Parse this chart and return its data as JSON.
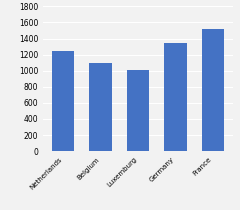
{
  "categories": [
    "Netherlands",
    "Belgium",
    "Luxemburg",
    "Germany",
    "France"
  ],
  "values": [
    1240,
    1090,
    1005,
    1340,
    1520
  ],
  "bar_color": "#4472C4",
  "ylim": [
    0,
    1800
  ],
  "yticks": [
    0,
    200,
    400,
    600,
    800,
    1000,
    1200,
    1400,
    1600,
    1800
  ],
  "background_color": "#f2f2f2",
  "plot_bg_color": "#f2f2f2",
  "grid_color": "#ffffff",
  "bar_width": 0.6,
  "tick_fontsize": 5.5,
  "xlabel_fontsize": 5.0
}
